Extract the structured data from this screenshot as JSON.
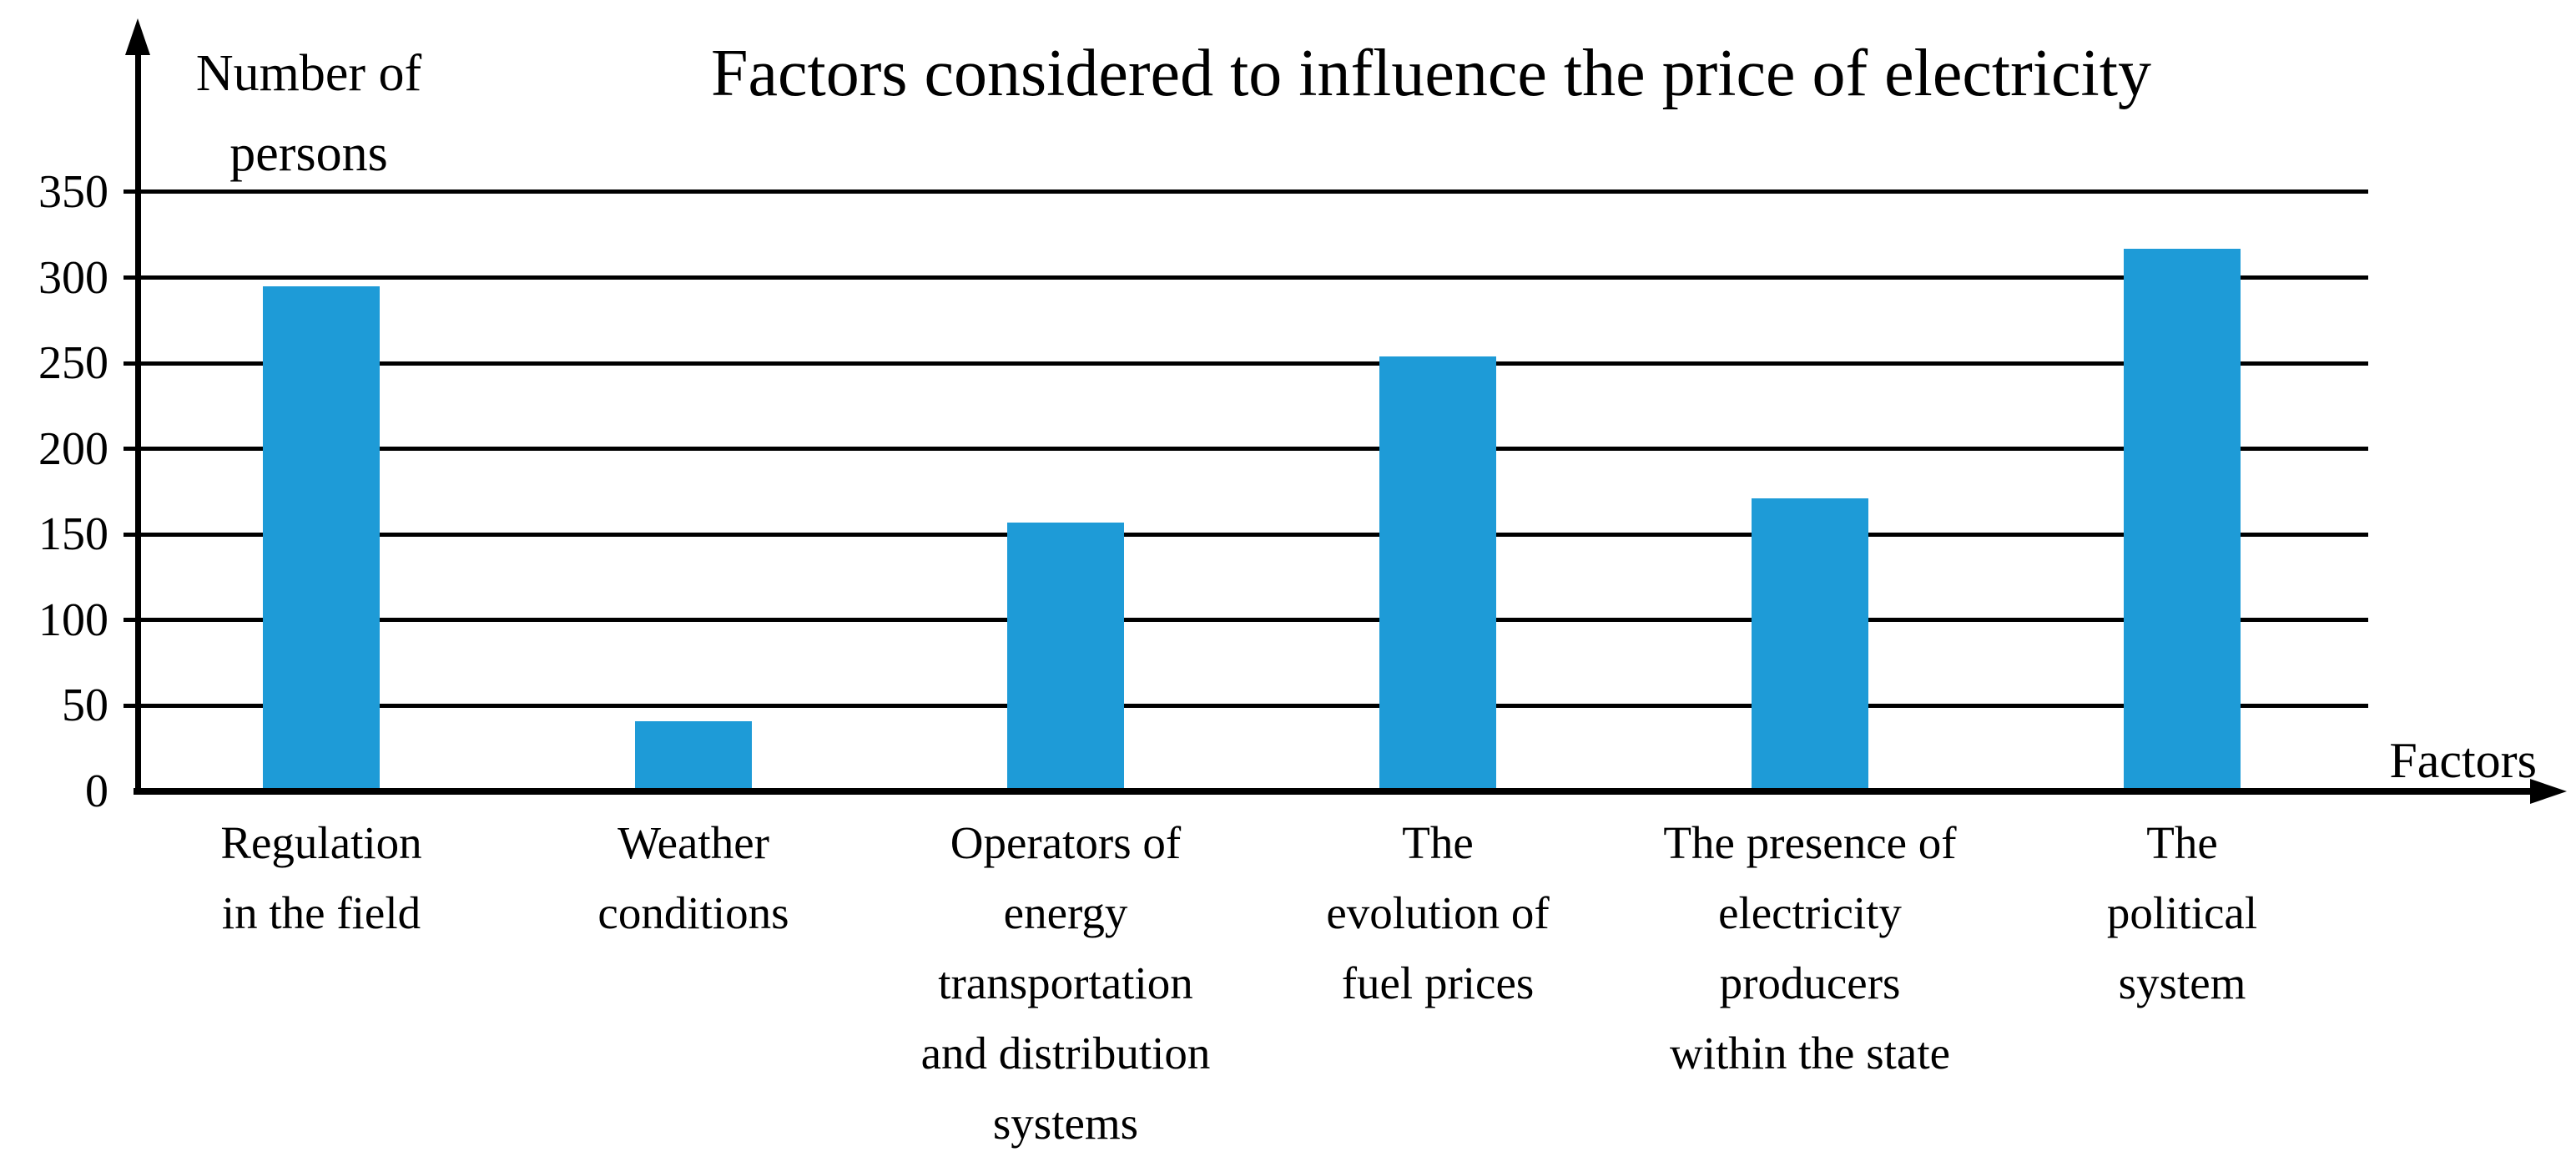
{
  "chart_data": {
    "type": "bar",
    "title": "Factors considered to influence the price of electricity",
    "ylabel": "Number of\npersons",
    "xlabel": "Factors",
    "categories": [
      "Regulation in the field",
      "Weather conditions",
      "Operators of energy transportation and distribution systems",
      "The evolution of fuel prices",
      "The presence of electricity producers within the state",
      "The political system"
    ],
    "category_lines": [
      [
        "Regulation",
        "in the field"
      ],
      [
        "Weather",
        "conditions"
      ],
      [
        "Operators of",
        "energy",
        "transportation",
        "and distribution",
        "systems"
      ],
      [
        "The",
        "evolution of",
        "fuel prices"
      ],
      [
        "The presence of",
        "electricity",
        "producers",
        "within the state"
      ],
      [
        "The",
        "political",
        "system"
      ]
    ],
    "values": [
      295,
      41,
      157,
      254,
      171,
      317
    ],
    "yticks": [
      0,
      50,
      100,
      150,
      200,
      250,
      300,
      350
    ],
    "ylim": [
      0,
      375
    ],
    "grid": true,
    "legend_position": "none",
    "bar_color": "#1e9bd7",
    "axis_color": "#000000",
    "text_color": "#000000",
    "background_color": "#ffffff"
  }
}
